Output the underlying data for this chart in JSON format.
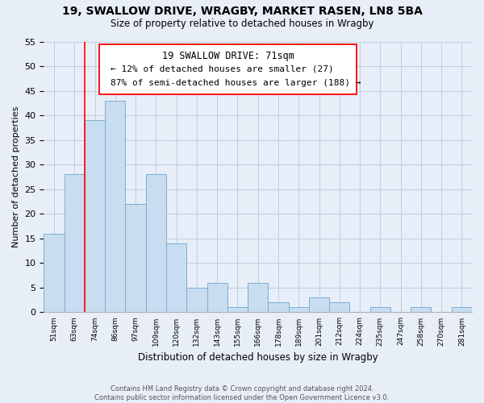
{
  "title_line1": "19, SWALLOW DRIVE, WRAGBY, MARKET RASEN, LN8 5BA",
  "title_line2": "Size of property relative to detached houses in Wragby",
  "xlabel": "Distribution of detached houses by size in Wragby",
  "ylabel": "Number of detached properties",
  "bin_labels": [
    "51sqm",
    "63sqm",
    "74sqm",
    "86sqm",
    "97sqm",
    "109sqm",
    "120sqm",
    "132sqm",
    "143sqm",
    "155sqm",
    "166sqm",
    "178sqm",
    "189sqm",
    "201sqm",
    "212sqm",
    "224sqm",
    "235sqm",
    "247sqm",
    "258sqm",
    "270sqm",
    "281sqm"
  ],
  "bar_heights": [
    16,
    28,
    39,
    43,
    22,
    28,
    14,
    5,
    6,
    1,
    6,
    2,
    1,
    3,
    2,
    0,
    1,
    0,
    1,
    0,
    1
  ],
  "bar_color": "#c8ddf0",
  "bar_edge_color": "#7bafd4",
  "property_line_label": "19 SWALLOW DRIVE: 71sqm",
  "annotation_line1": "← 12% of detached houses are smaller (27)",
  "annotation_line2": "87% of semi-detached houses are larger (188) →",
  "ylim": [
    0,
    55
  ],
  "yticks": [
    0,
    5,
    10,
    15,
    20,
    25,
    30,
    35,
    40,
    45,
    50,
    55
  ],
  "footer_line1": "Contains HM Land Registry data © Crown copyright and database right 2024.",
  "footer_line2": "Contains public sector information licensed under the Open Government Licence v3.0.",
  "background_color": "#e8eef8",
  "plot_bg_color": "#e8eef8",
  "grid_color": "#c0cce0"
}
